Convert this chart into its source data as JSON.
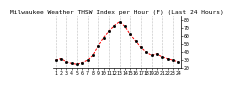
{
  "title": "Milwaukee Weather THSW Index per Hour (F) (Last 24 Hours)",
  "hours": [
    1,
    2,
    3,
    4,
    5,
    6,
    7,
    8,
    9,
    10,
    11,
    12,
    13,
    14,
    15,
    16,
    17,
    18,
    19,
    20,
    21,
    22,
    23,
    24
  ],
  "values": [
    30,
    32,
    28,
    26,
    25,
    27,
    30,
    36,
    48,
    58,
    66,
    73,
    78,
    72,
    62,
    54,
    46,
    40,
    36,
    38,
    34,
    32,
    30,
    28
  ],
  "line_color": "#ff0000",
  "marker_color": "#000000",
  "grid_color": "#888888",
  "bg_color": "#ffffff",
  "title_fontsize": 4.5,
  "tick_fontsize": 3.5,
  "ylim": [
    20,
    85
  ],
  "yticks": [
    20,
    30,
    40,
    50,
    60,
    70,
    80
  ],
  "grid_xticks": [
    1,
    3,
    5,
    7,
    9,
    11,
    13,
    15,
    17,
    19,
    21,
    23
  ]
}
